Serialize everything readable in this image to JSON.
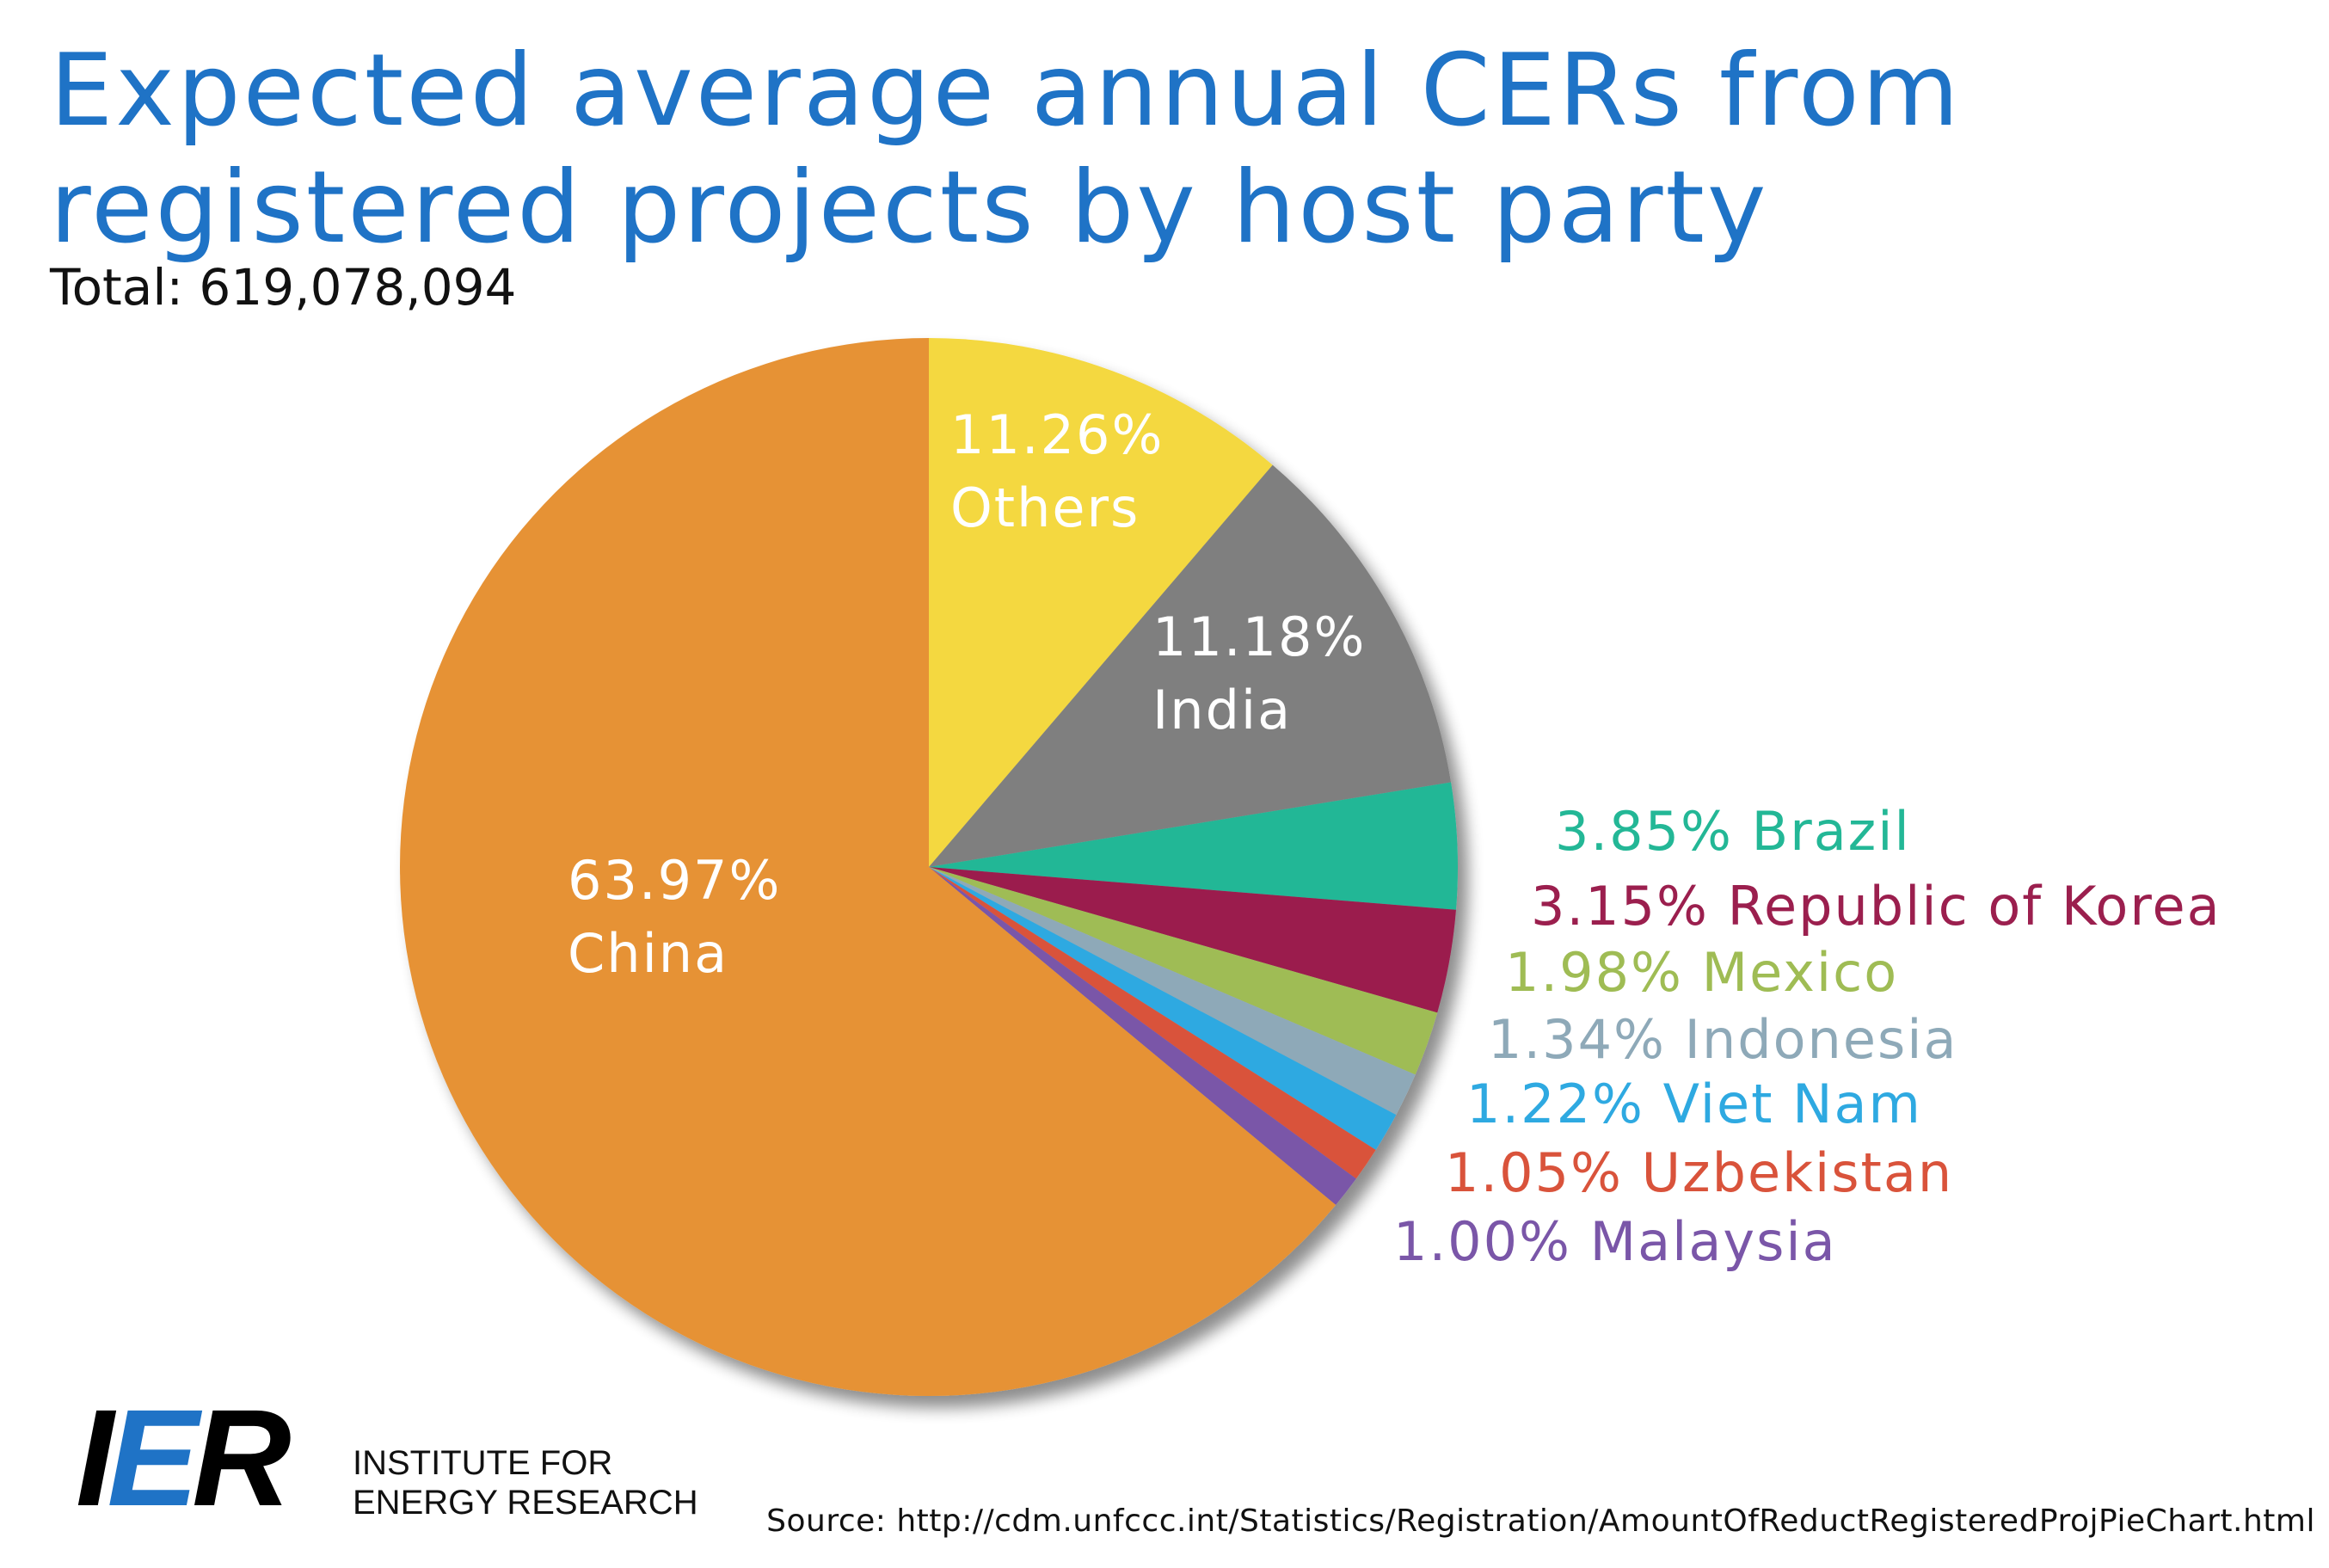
{
  "title": {
    "line1": "Expected average annual CERs from",
    "line2": "registered projects by host party"
  },
  "subtitle": "Total: 619,078,094",
  "chart_data": {
    "type": "pie",
    "title": "Expected average annual CERs from registered projects by host party",
    "subtitle": "Total: 619,078,094",
    "total": 619078094,
    "label_position": "inside for large slices, outside right for small slices",
    "slices": [
      {
        "name": "Others",
        "value": 11.26,
        "value_label": "11.26%",
        "color": "#f4d83f",
        "label_color": "#ffffff",
        "label_style": "inside"
      },
      {
        "name": "India",
        "value": 11.18,
        "value_label": "11.18%",
        "color": "#7f7f7f",
        "label_color": "#ffffff",
        "label_style": "inside"
      },
      {
        "name": "Brazil",
        "value": 3.85,
        "value_label": "3.85%",
        "color": "#23b796",
        "label_color": "#23b796",
        "label_style": "outside"
      },
      {
        "name": "Republic of Korea",
        "value": 3.15,
        "value_label": "3.15%",
        "color": "#9b1f4e",
        "label_color": "#9b1f4e",
        "label_style": "outside"
      },
      {
        "name": "Mexico",
        "value": 1.98,
        "value_label": "1.98%",
        "color": "#9fbc54",
        "label_color": "#9fbc54",
        "label_style": "outside"
      },
      {
        "name": "Indonesia",
        "value": 1.34,
        "value_label": "1.34%",
        "color": "#8ea9b8",
        "label_color": "#8ea9b8",
        "label_style": "outside"
      },
      {
        "name": "Viet Nam",
        "value": 1.22,
        "value_label": "1.22%",
        "color": "#2ea9e1",
        "label_color": "#2ea9e1",
        "label_style": "outside"
      },
      {
        "name": "Uzbekistan",
        "value": 1.05,
        "value_label": "1.05%",
        "color": "#d9533b",
        "label_color": "#d9533b",
        "label_style": "outside"
      },
      {
        "name": "Malaysia",
        "value": 1.0,
        "value_label": "1.00%",
        "color": "#7a56a8",
        "label_color": "#7a56a8",
        "label_style": "outside"
      },
      {
        "name": "China",
        "value": 63.97,
        "value_label": "63.97%",
        "color": "#e69234",
        "label_color": "#ffffff",
        "label_style": "inside"
      }
    ]
  },
  "logo": {
    "mark": {
      "left": "I",
      "middle": "E",
      "right": "R"
    },
    "line1": "INSTITUTE FOR",
    "line2": "ENERGY RESEARCH"
  },
  "source": "Source: http://cdm.unfccc.int/Statistics/Registration/AmountOfReductRegisteredProjPieChart.html",
  "colors": {
    "title": "#1f73c6",
    "text": "#111111"
  }
}
